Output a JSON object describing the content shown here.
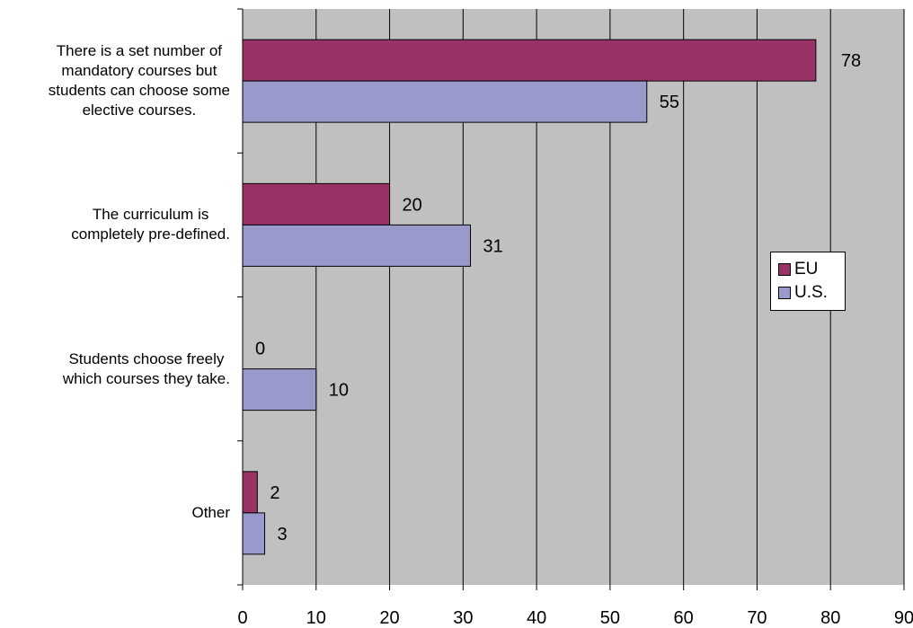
{
  "chart_data": {
    "type": "bar",
    "orientation": "horizontal",
    "categories": [
      "There is a set number of mandatory courses but students can choose some elective courses.",
      "The curriculum is completely pre-defined.",
      "Students choose freely which courses they take.",
      "Other"
    ],
    "category_lines": [
      [
        "There is a set number of",
        "mandatory courses but",
        "students can choose some",
        "elective courses."
      ],
      [
        "The curriculum is",
        "completely pre-defined."
      ],
      [
        "Students choose freely",
        "which courses they take."
      ],
      [
        "Other"
      ]
    ],
    "series": [
      {
        "name": "EU",
        "values": [
          78,
          20,
          0,
          2
        ],
        "color": "#993366"
      },
      {
        "name": "U.S.",
        "values": [
          55,
          31,
          10,
          3
        ],
        "color": "#9999cc"
      }
    ],
    "xlim": [
      0,
      90
    ],
    "x_ticks": [
      "0",
      "10",
      "20",
      "30",
      "40",
      "50",
      "60",
      "70",
      "80",
      "90"
    ],
    "grid": "vertical",
    "plot_background": "#c0c0c0",
    "legend_position": "right"
  }
}
